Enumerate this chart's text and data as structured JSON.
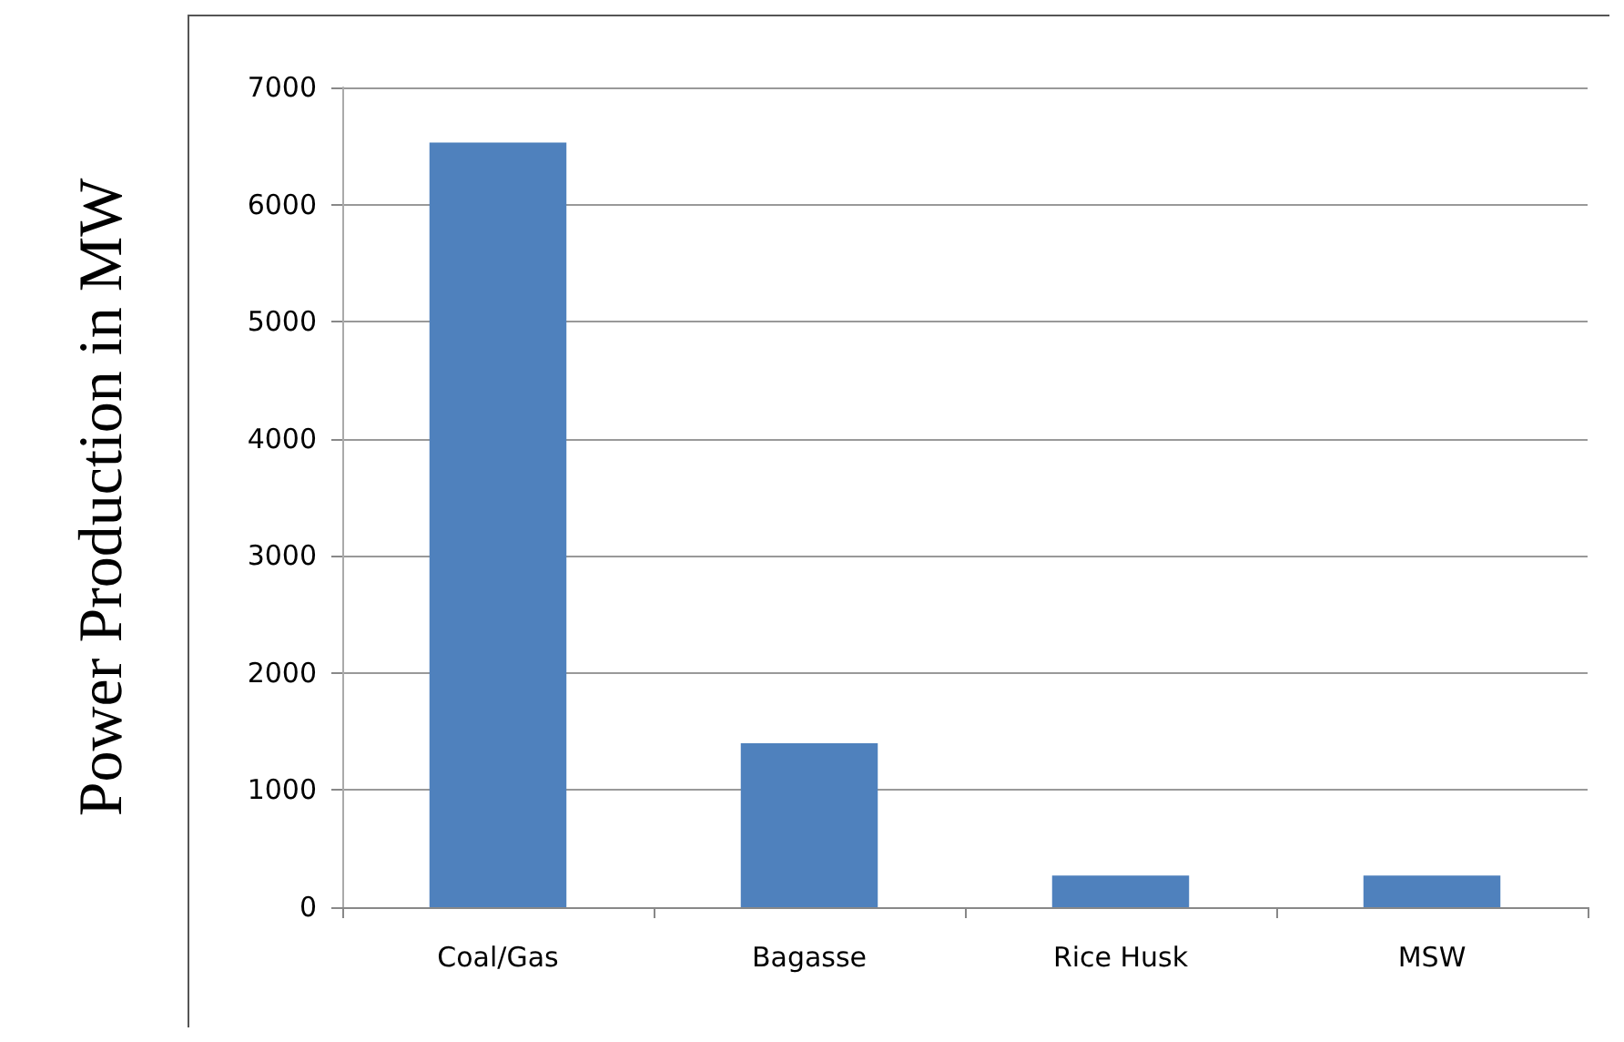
{
  "chart_data": {
    "type": "bar",
    "ylabel": "Power Production in MW",
    "categories": [
      "Coal/Gas",
      "Bagasse",
      "Rice Husk",
      "MSW"
    ],
    "values": [
      6530,
      1400,
      270,
      270
    ],
    "color": "#4f81bd",
    "ylim": [
      0,
      7000
    ],
    "yticks": [
      0,
      1000,
      2000,
      3000,
      4000,
      5000,
      6000,
      7000
    ],
    "grid": "y"
  }
}
